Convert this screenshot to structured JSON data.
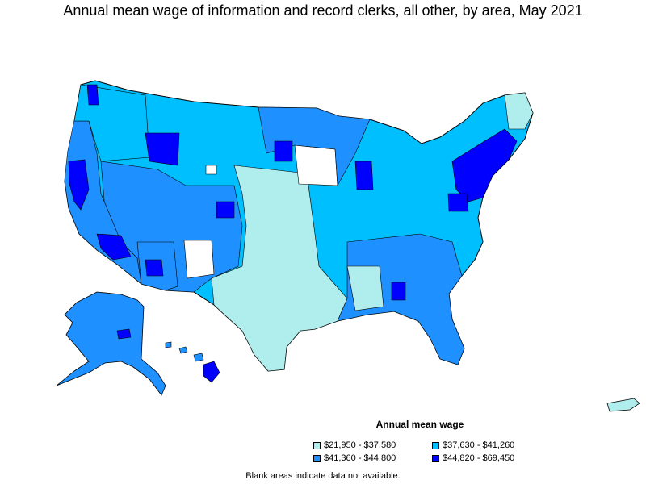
{
  "title": "Annual mean wage of information and record clerks, all other, by area, May 2021",
  "legend": {
    "title": "Annual mean wage",
    "items": [
      {
        "label": "$21,950 - $37,580",
        "color": "#b0eeee"
      },
      {
        "label": "$37,630 - $41,260",
        "color": "#00bfff"
      },
      {
        "label": "$41,360 - $44,800",
        "color": "#1e90ff"
      },
      {
        "label": "$44,820 - $69,450",
        "color": "#0000ff"
      }
    ]
  },
  "footnote": "Blank areas indicate data not available.",
  "colors": {
    "outline": "#000000",
    "blank": "#ffffff"
  }
}
